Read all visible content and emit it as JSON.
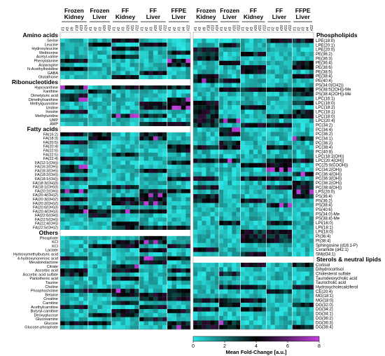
{
  "chart_data": [
    {
      "type": "heatmap",
      "panel": "left",
      "column_groups": [
        "Frozen Kidney",
        "Frozen Liver",
        "FF Kidney",
        "FF Liver",
        "FFPE Liver"
      ],
      "columns": [
        "#1",
        "#3",
        "#9",
        "#18",
        "#23",
        "#24",
        "#1",
        "#2",
        "#3",
        "#20",
        "#22",
        "#1",
        "#2",
        "#3",
        "#20",
        "#21",
        "#22",
        "#1",
        "#2",
        "#3",
        "#20",
        "#21",
        "#22",
        "#1",
        "#2",
        "#3",
        "#4",
        "#22"
      ],
      "sections": [
        {
          "name": "Amino acids",
          "rows": [
            "Serine",
            "Leucine",
            "Hydroxyleucine",
            "Methionine",
            "Acetyl-valine",
            "Phenylalanine",
            "Asparagine",
            "N-Acethylhistidine",
            "GABA",
            "Glutathione"
          ]
        },
        {
          "name": "Ribonucleotides",
          "rows": [
            "Hypoxanthine",
            "Xanthine",
            "Dimetyluric acid",
            "Dimethylxanthine",
            "Methylguanidine",
            "Uridine",
            "Inosine",
            "Methyluridine",
            "UMP",
            "AMP"
          ]
        },
        {
          "name": "Fatty acids",
          "rows": [
            "FA(16:2)",
            "FA(18:3)",
            "FA(20:5)",
            "FA(20:4)",
            "FA(22:6)",
            "FA(22:5)",
            "FA(22:4)",
            "FA(12:1(OH))",
            "FA(16:2(OH))",
            "FA(18:3(OH))",
            "FA(18:2(OH))",
            "FA(18:1(OH))",
            "FA(18:3(OH)3)",
            "FA(18:1(OH)3)",
            "FA(20:2(OH))",
            "FA(20:4(OH)2)",
            "FA(20:3(OH)2)",
            "FA(20:2(OH)2)",
            "FA(20:6(OH)3)",
            "FA(20:4(OH)3)",
            "FA(22:6(OH))",
            "FA(22:5(OH))",
            "FA(22:4(OH))",
            "FA(22:5(OH)2)"
          ]
        },
        {
          "name": "Others",
          "rows": [
            "Phosphate",
            "KCl",
            "KCl",
            "Lactate",
            "Hydroxymethylbutyric acid",
            "4-hydroxynonenoic acid",
            "Mevalonolactone",
            "Citrate",
            "Ascorbic acid",
            "Ascorbic acid sulfate",
            "Pantothenic acid",
            "Taurine",
            "Choline",
            "Phosphocholine",
            "Betaine",
            "Creatine",
            "Carnitine",
            "Acethylcarnitine",
            "Butyryl-carnitine",
            "Deoxyglucose",
            "Glucosamine",
            "Glucose",
            "Glucose-phosphate"
          ]
        }
      ]
    },
    {
      "type": "heatmap",
      "panel": "right",
      "column_groups": [
        "Frozen Kidney",
        "Frozen Liver",
        "FF Kidney",
        "FF Liver",
        "FFPE Liver"
      ],
      "columns": [
        "#1",
        "#3",
        "#9",
        "#18",
        "#23",
        "#24",
        "#1",
        "#2",
        "#3",
        "#20",
        "#22",
        "#1",
        "#2",
        "#3",
        "#20",
        "#21",
        "#22",
        "#1",
        "#2",
        "#3",
        "#20",
        "#21",
        "#22",
        "#1",
        "#2",
        "#3",
        "#4",
        "#22"
      ],
      "sections": [
        {
          "name": "Phospholipids",
          "rows": [
            "LPE(18:0)",
            "LPE(20:1)",
            "LPE(20:0)",
            "PE(36:2)",
            "PE(36:3)",
            "PE(36:4)",
            "PE(38:6)",
            "PE(38:5)",
            "PE(38:4)",
            "PE(40:4)",
            "PS(34:0(CH2))",
            "PS(38:5(2OH))-Me",
            "PS(38:4(2OH))-Me",
            "LPC(16:1)",
            "LPC(16:0)",
            "LPC(18:2)",
            "LPC(18:1)",
            "LPC(18:0)",
            "LPC(20:4)",
            "PC(34:2)",
            "PC(34:4)",
            "PC(36:2)",
            "PC(34:1)",
            "PC(36:2)",
            "PC(38:4)",
            "PC(40:8)",
            "LPC(18:2(OH))",
            "LPC(20:4(OH))",
            "PC(25:0(COOH))",
            "PC(34:2(OH))",
            "PC(36:4(OH))",
            "PC(36:3(OH))",
            "PC(36:2(OH))",
            "PC(38:4(OH))",
            "LPS(20:0)",
            "PS(36:4)",
            "PS(36:2)",
            "PS(38:4)",
            "PS(40:6)",
            "PS(34:0)-Me",
            "PS(38:4)-Me",
            "LPI(16:0)",
            "LPI(18:1)",
            "LPI(18:0)",
            "PI(36:4)",
            "PI(38:4)",
            "Sphingosine (d16:1-P)",
            "Ceramide (d42:1)",
            "SM(d34:1)"
          ]
        },
        {
          "name": "Sterols & neutral lipids",
          "rows": [
            "Cortisol",
            "Dihydrocortisol",
            "Cholesterol sulfate",
            "Taurodeoxycholic acid",
            "Taurocholic acid",
            "Hydroxycholecalciferol",
            "CE(20:4)",
            "MG(18:1)",
            "MG(18:0)",
            "DG(32:0)",
            "DG(34:2)",
            "DG(34:1)",
            "DG(36:2)",
            "DG(36:3)",
            "DG(38:4)"
          ]
        }
      ]
    }
  ],
  "colorbar": {
    "label": "Mean Fold-Change [a.u.]",
    "ticks": [
      "0",
      "2",
      "4",
      "6",
      "8"
    ],
    "range": [
      0,
      8
    ]
  },
  "colors": {
    "low": "#29E8E6",
    "mid": "#000000",
    "high": "#C33FE0"
  }
}
